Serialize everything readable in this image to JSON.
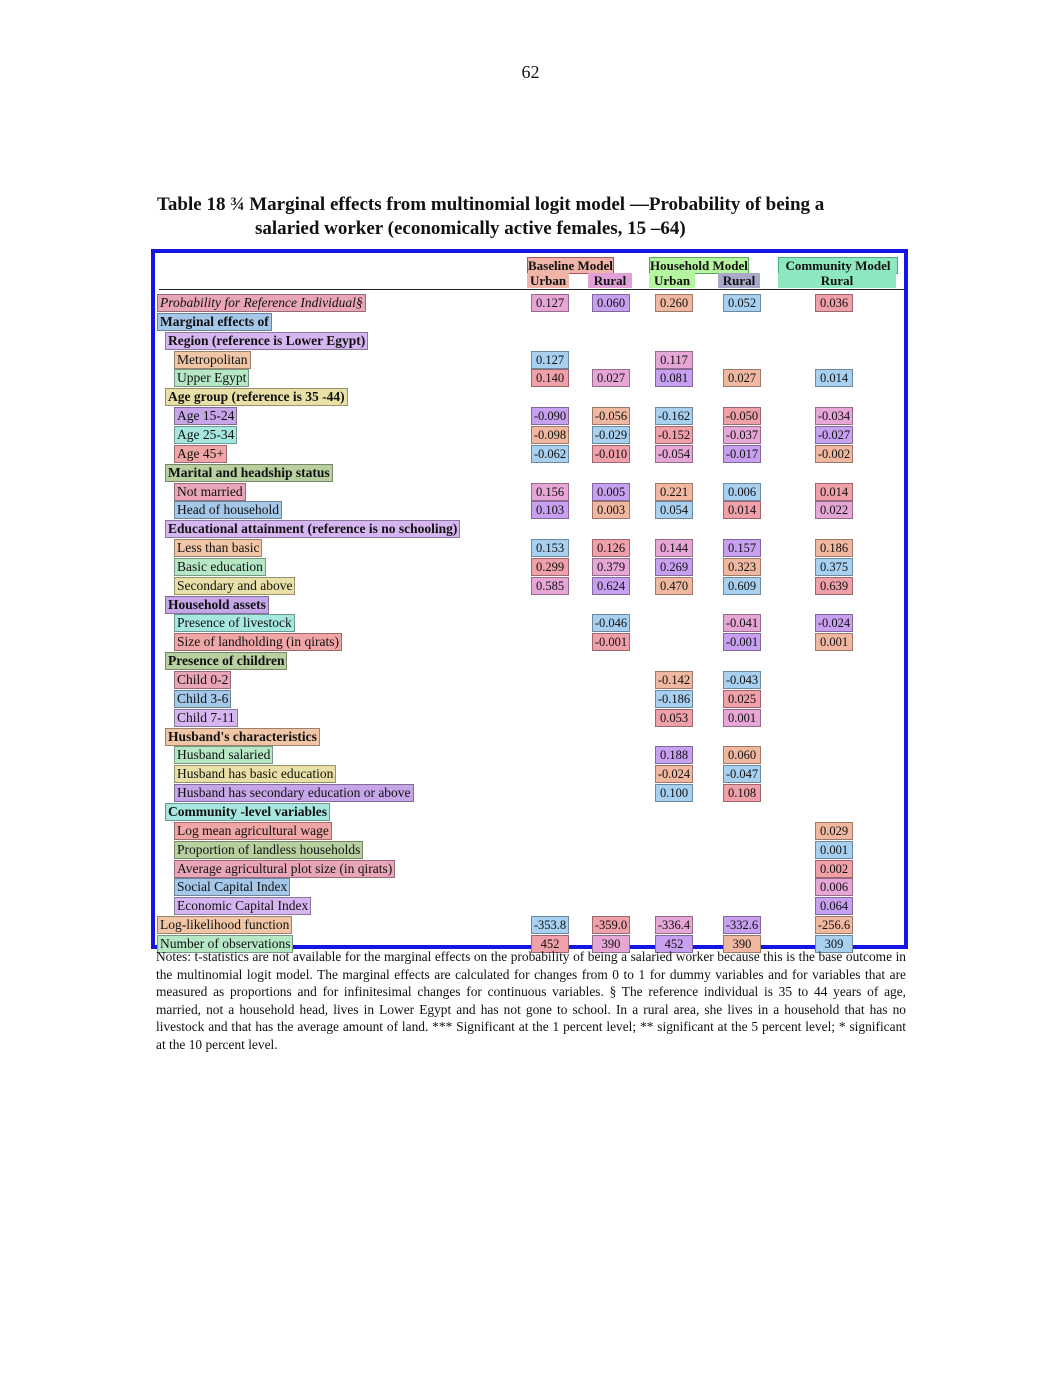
{
  "page_number": "62",
  "caption": {
    "line1": "Table 18 ¾ Marginal effects from multinomial logit model —Probability of being a",
    "line2": "salaried worker (economically active females, 15 –64)"
  },
  "header": {
    "baseline_model": "Baseline Model",
    "household_model": "Household Model",
    "community_model": "Community Model",
    "subheads": [
      "Urban",
      "Rural",
      "Urban",
      "Rural",
      "Rural"
    ]
  },
  "rows": [
    {
      "label": "Probability for Reference Individual§",
      "style": "ital",
      "level": 0,
      "cells": [
        "0.127",
        "0.060",
        "0.260",
        "0.052",
        "0.036"
      ]
    },
    {
      "label": "Marginal effects of",
      "style": "bold",
      "level": 0,
      "cells": [
        "",
        "",
        "",
        "",
        ""
      ]
    },
    {
      "label": "Region (reference is Lower Egypt)",
      "style": "bold",
      "level": 1,
      "cells": [
        "",
        "",
        "",
        "",
        ""
      ]
    },
    {
      "label": "Metropolitan",
      "style": "",
      "level": 2,
      "cells": [
        "0.127",
        "",
        "0.117",
        "",
        ""
      ]
    },
    {
      "label": "Upper Egypt",
      "style": "",
      "level": 2,
      "cells": [
        "0.140",
        "0.027",
        "0.081",
        "0.027",
        "0.014"
      ]
    },
    {
      "label": "Age group (reference is 35 -44)",
      "style": "bold",
      "level": 1,
      "cells": [
        "",
        "",
        "",
        "",
        ""
      ]
    },
    {
      "label": "Age 15-24",
      "style": "",
      "level": 2,
      "cells": [
        "-0.090",
        "-0.056",
        "-0.162",
        "-0.050",
        "-0.034"
      ]
    },
    {
      "label": "Age 25-34",
      "style": "",
      "level": 2,
      "cells": [
        "-0.098",
        "-0.029",
        "-0.152",
        "-0.037",
        "-0.027"
      ]
    },
    {
      "label": "Age 45+",
      "style": "",
      "level": 2,
      "cells": [
        "-0.062",
        "-0.010",
        "-0.054",
        "-0.017",
        "-0.002"
      ]
    },
    {
      "label": "Marital and headship status",
      "style": "bold",
      "level": 1,
      "cells": [
        "",
        "",
        "",
        "",
        ""
      ]
    },
    {
      "label": "Not married",
      "style": "",
      "level": 2,
      "cells": [
        "0.156",
        "0.005",
        "0.221",
        "0.006",
        "0.014"
      ]
    },
    {
      "label": "Head of household",
      "style": "",
      "level": 2,
      "cells": [
        "0.103",
        "0.003",
        "0.054",
        "0.014",
        "0.022"
      ]
    },
    {
      "label": "Educational attainment (reference is no schooling)",
      "style": "bold",
      "level": 1,
      "cells": [
        "",
        "",
        "",
        "",
        ""
      ]
    },
    {
      "label": "Less than basic",
      "style": "",
      "level": 2,
      "cells": [
        "0.153",
        "0.126",
        "0.144",
        "0.157",
        "0.186"
      ]
    },
    {
      "label": "Basic education",
      "style": "",
      "level": 2,
      "cells": [
        "0.299",
        "0.379",
        "0.269",
        "0.323",
        "0.375"
      ]
    },
    {
      "label": "Secondary and above",
      "style": "",
      "level": 2,
      "cells": [
        "0.585",
        "0.624",
        "0.470",
        "0.609",
        "0.639"
      ]
    },
    {
      "label": "Household assets",
      "style": "bold",
      "level": 1,
      "cells": [
        "",
        "",
        "",
        "",
        ""
      ]
    },
    {
      "label": "Presence of livestock",
      "style": "",
      "level": 2,
      "cells": [
        "",
        "-0.046",
        "",
        "-0.041",
        "-0.024"
      ]
    },
    {
      "label": "Size of landholding (in qirats)",
      "style": "",
      "level": 2,
      "cells": [
        "",
        "-0.001",
        "",
        "-0.001",
        "0.001"
      ]
    },
    {
      "label": "Presence of children",
      "style": "bold",
      "level": 1,
      "cells": [
        "",
        "",
        "",
        "",
        ""
      ]
    },
    {
      "label": "Child 0-2",
      "style": "",
      "level": 2,
      "cells": [
        "",
        "",
        "-0.142",
        "-0.043",
        ""
      ]
    },
    {
      "label": "Child 3-6",
      "style": "",
      "level": 2,
      "cells": [
        "",
        "",
        "-0.186",
        "0.025",
        ""
      ]
    },
    {
      "label": "Child 7-11",
      "style": "",
      "level": 2,
      "cells": [
        "",
        "",
        "0.053",
        "0.001",
        ""
      ]
    },
    {
      "label": "Husband's characteristics",
      "style": "bold",
      "level": 1,
      "cells": [
        "",
        "",
        "",
        "",
        ""
      ]
    },
    {
      "label": "Husband salaried",
      "style": "",
      "level": 2,
      "cells": [
        "",
        "",
        "0.188",
        "0.060",
        ""
      ]
    },
    {
      "label": "Husband has basic education",
      "style": "",
      "level": 2,
      "cells": [
        "",
        "",
        "-0.024",
        "-0.047",
        ""
      ]
    },
    {
      "label": "Husband has secondary education or above",
      "style": "",
      "level": 2,
      "cells": [
        "",
        "",
        "0.100",
        "0.108",
        ""
      ]
    },
    {
      "label": "Community -level variables",
      "style": "bold",
      "level": 1,
      "cells": [
        "",
        "",
        "",
        "",
        ""
      ]
    },
    {
      "label": "Log mean agricultural wage",
      "style": "",
      "level": 2,
      "cells": [
        "",
        "",
        "",
        "",
        "0.029"
      ]
    },
    {
      "label": "Proportion of landless households",
      "style": "",
      "level": 2,
      "cells": [
        "",
        "",
        "",
        "",
        "0.001"
      ]
    },
    {
      "label": "Average agricultural plot size (in qirats)",
      "style": "",
      "level": 2,
      "cells": [
        "",
        "",
        "",
        "",
        "0.002"
      ]
    },
    {
      "label": "Social Capital Index",
      "style": "",
      "level": 2,
      "cells": [
        "",
        "",
        "",
        "",
        "0.006"
      ]
    },
    {
      "label": "Economic Capital Index",
      "style": "",
      "level": 2,
      "cells": [
        "",
        "",
        "",
        "",
        "0.064"
      ]
    },
    {
      "label": "Log-likelihood function",
      "style": "",
      "level": 0,
      "cells": [
        "-353.8",
        "-359.0",
        "-336.4",
        "-332.6",
        "-256.6"
      ]
    },
    {
      "label": "Number of observations",
      "style": "",
      "level": 0,
      "cells": [
        "452",
        "390",
        "452",
        "390",
        "309"
      ]
    }
  ],
  "notes": "Notes: t-statistics are not available for the marginal effects on the probability of being a salaried worker because this is the base outcome in the multinomial logit model. The marginal effects are calculated for changes from 0 to 1 for dummy variables and for variables that are measured as proportions and for infinitesimal changes for continuous variables. § The reference individual is 35 to 44 years of age, married, not a household head, lives in Lower Egypt and has not gone to school. In a rural area, she lives in a household that has no livestock and that has the average amount of land. *** Significant at the 1 percent level; ** significant at the 5 percent level; * significant at the 10 percent level.",
  "colors": {
    "frame": "#1515e6",
    "highlight_line": "#e41ee4",
    "reading_path": "#22dde8"
  }
}
